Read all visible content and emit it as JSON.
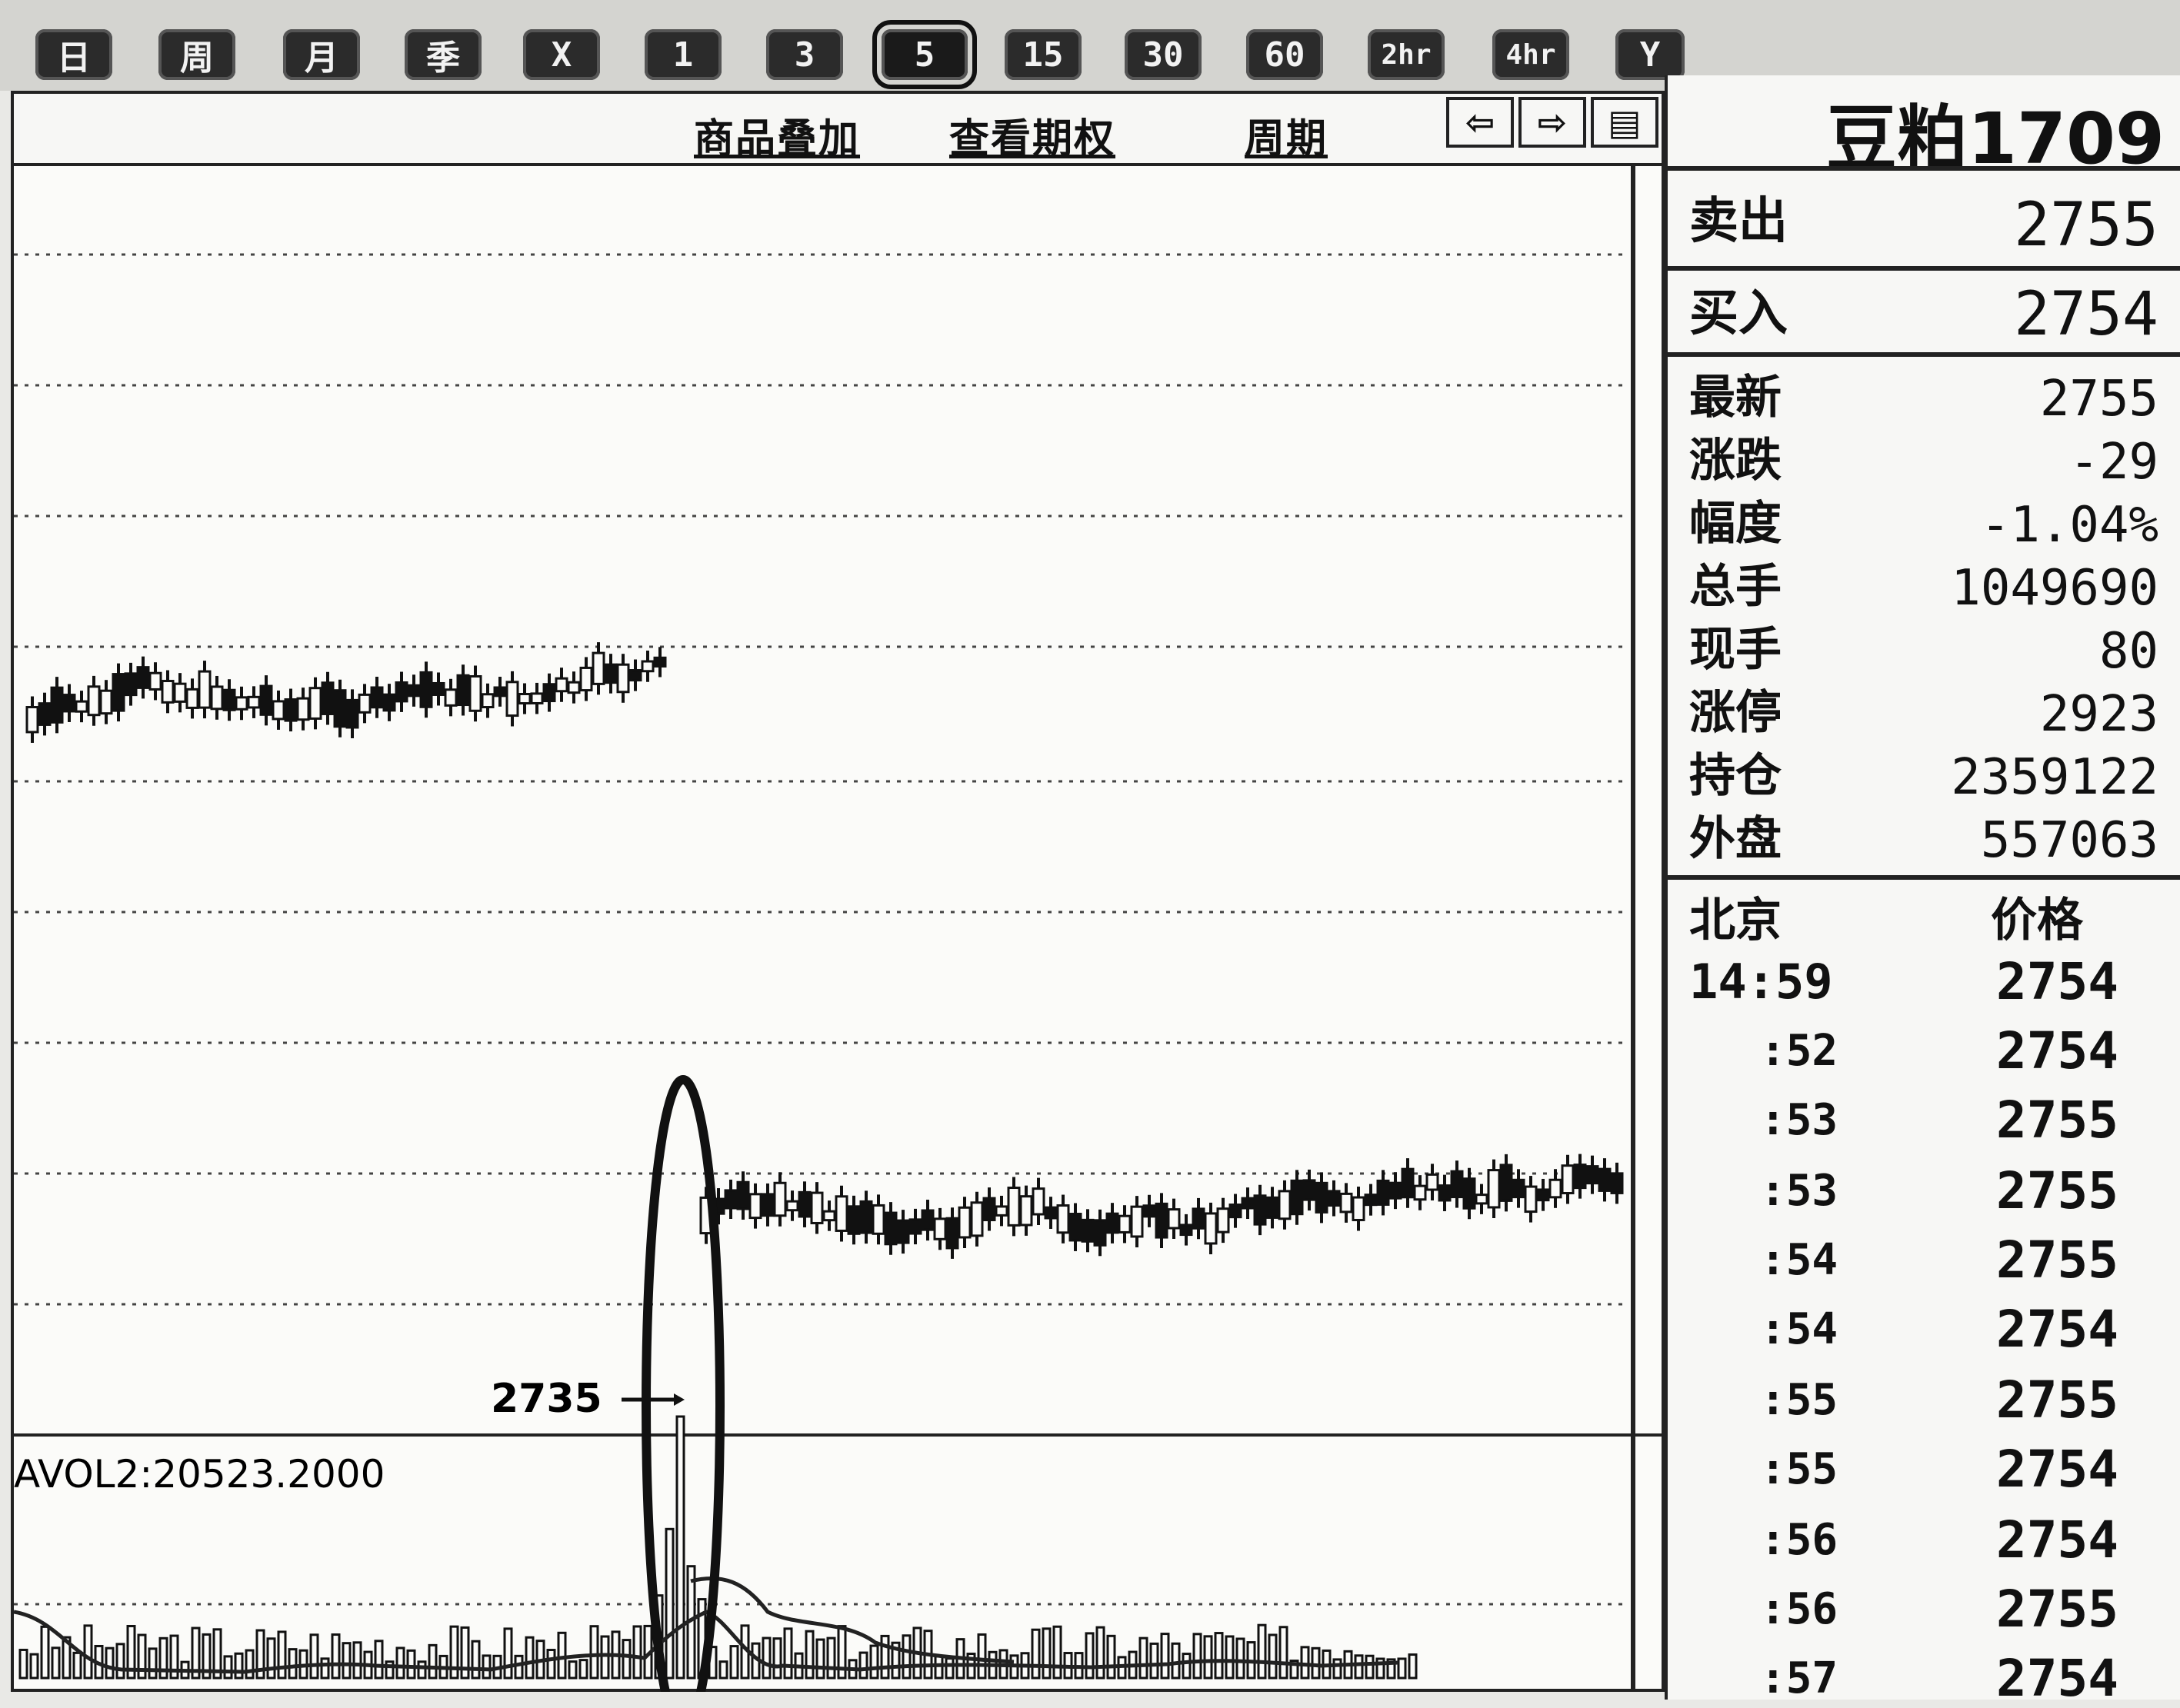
{
  "toolbar": {
    "period_buttons": [
      "日",
      "周",
      "月",
      "季",
      "X",
      "1",
      "3",
      "5",
      "15",
      "30",
      "60",
      "2hr",
      "4hr",
      "Y"
    ],
    "selected": "5"
  },
  "header": {
    "links": [
      "商品叠加",
      "查看期权",
      "周期"
    ]
  },
  "chart": {
    "annotation_price": "2735",
    "volume_label": "AVOL2:20523.2000"
  },
  "quote": {
    "instrument": "豆粕1709",
    "sell_label": "卖出",
    "sell_value": "2755",
    "buy_label": "买入",
    "buy_value": "2754",
    "stats": [
      {
        "label": "最新",
        "value": "2755"
      },
      {
        "label": "涨跌",
        "value": "-29"
      },
      {
        "label": "幅度",
        "value": "-1.04%"
      },
      {
        "label": "总手",
        "value": "1049690"
      },
      {
        "label": "现手",
        "value": "80"
      },
      {
        "label": "涨停",
        "value": "2923"
      },
      {
        "label": "持仓",
        "value": "2359122"
      },
      {
        "label": "外盘",
        "value": "557063"
      }
    ]
  },
  "ticks": {
    "header_time": "北京",
    "header_price": "价格",
    "rows": [
      {
        "time": "14:59",
        "price": "2754"
      },
      {
        "time": ":52",
        "price": "2754"
      },
      {
        "time": ":53",
        "price": "2755"
      },
      {
        "time": ":53",
        "price": "2755"
      },
      {
        "time": ":54",
        "price": "2755"
      },
      {
        "time": ":54",
        "price": "2754"
      },
      {
        "time": ":55",
        "price": "2755"
      },
      {
        "time": ":55",
        "price": "2754"
      },
      {
        "time": ":56",
        "price": "2754"
      },
      {
        "time": ":56",
        "price": "2755"
      },
      {
        "time": ":57",
        "price": "2754"
      }
    ]
  }
}
